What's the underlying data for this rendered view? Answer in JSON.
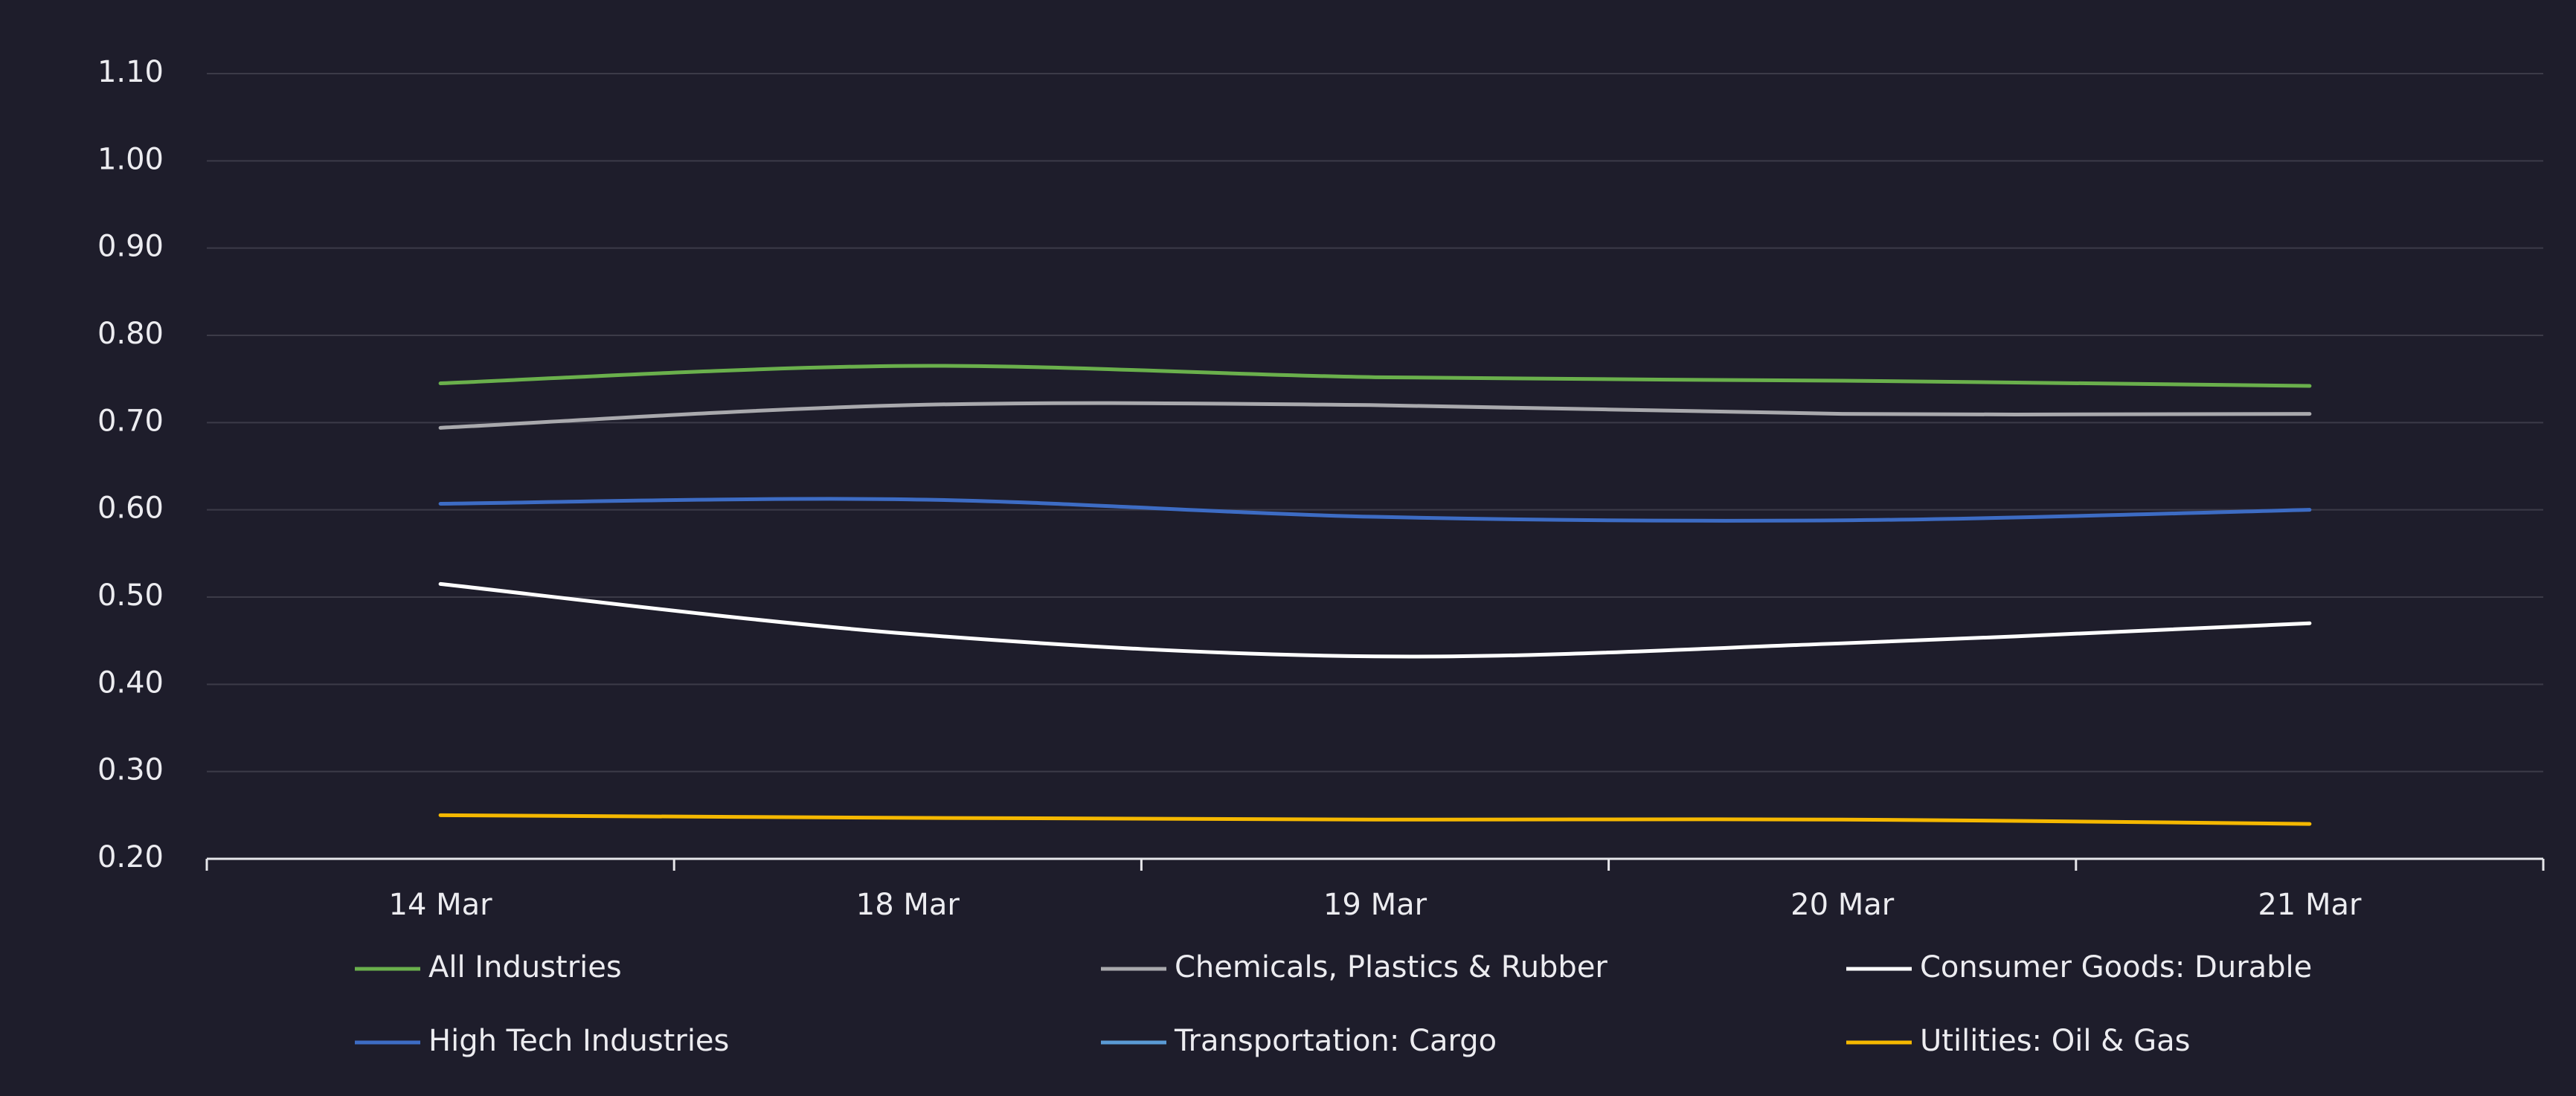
{
  "chart_data": {
    "type": "line",
    "categories": [
      "14 Mar",
      "18 Mar",
      "19 Mar",
      "20 Mar",
      "21 Mar"
    ],
    "series": [
      {
        "name": "All Industries",
        "color": "#6ab04c",
        "values": [
          0.745,
          0.765,
          0.752,
          0.748,
          0.742
        ]
      },
      {
        "name": "Chemicals, Plastics & Rubber",
        "color": "#a9a9ad",
        "values": [
          0.694,
          0.72,
          0.72,
          0.71,
          0.71
        ]
      },
      {
        "name": "Consumer Goods: Durable",
        "color": "#ffffff",
        "values": [
          0.515,
          0.458,
          0.432,
          0.447,
          0.47
        ]
      },
      {
        "name": "High Tech Industries",
        "color": "#3d6cc4",
        "values": [
          0.607,
          0.612,
          0.592,
          0.588,
          0.6
        ]
      },
      {
        "name": "Transportation: Cargo",
        "color": "#5b9bd5",
        "values": [
          null,
          null,
          null,
          null,
          null
        ]
      },
      {
        "name": "Utilities: Oil & Gas",
        "color": "#f5b800",
        "values": [
          0.25,
          0.247,
          0.245,
          0.245,
          0.24
        ]
      }
    ],
    "ylim": [
      0.2,
      1.1
    ],
    "yticks": [
      {
        "value": 0.2,
        "label": "0.20"
      },
      {
        "value": 0.3,
        "label": "0.30"
      },
      {
        "value": 0.4,
        "label": "0.40"
      },
      {
        "value": 0.5,
        "label": "0.50"
      },
      {
        "value": 0.6,
        "label": "0.60"
      },
      {
        "value": 0.7,
        "label": "0.70"
      },
      {
        "value": 0.8,
        "label": "0.80"
      },
      {
        "value": 0.9,
        "label": "0.90"
      },
      {
        "value": 1.0,
        "label": "1.00"
      },
      {
        "value": 1.1,
        "label": "1.10"
      }
    ],
    "grid": true
  }
}
